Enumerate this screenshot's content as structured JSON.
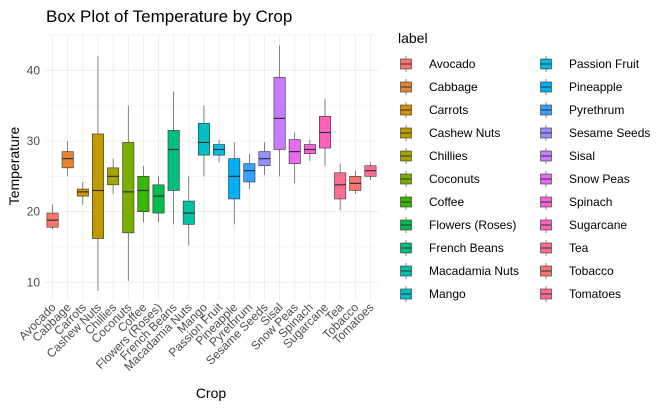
{
  "chart_data": {
    "type": "box",
    "title": "Box Plot of Temperature by Crop",
    "xlabel": "Crop",
    "ylabel": "Temperature",
    "ylim": [
      7.5,
      45
    ],
    "y_ticks": [
      10,
      20,
      30,
      40
    ],
    "grid": true,
    "legend": {
      "title": "label",
      "position": "right",
      "columns": 2
    },
    "categories": [
      "Avocado",
      "Cabbage",
      "Carrots",
      "Cashew Nuts",
      "Chillies",
      "Coconuts",
      "Coffee",
      "Flowers (Roses)",
      "French Beans",
      "Macadamia Nuts",
      "Mango",
      "Passion Fruit",
      "Pineapple",
      "Pyrethrum",
      "Sesame Seeds",
      "Sisal",
      "Snow Peas",
      "Spinach",
      "Sugarcane",
      "Tea",
      "Tobacco",
      "Tomatoes"
    ],
    "colors": [
      "#F8766D",
      "#EA8331",
      "#D89000",
      "#C09B00",
      "#A3A500",
      "#7CAE00",
      "#39B600",
      "#00BB4E",
      "#00BF7D",
      "#00C1A3",
      "#00BFC4",
      "#00BAE0",
      "#00B0F6",
      "#35A2FF",
      "#9590FF",
      "#C77CFF",
      "#E76BF3",
      "#FA62DB",
      "#FF62BC",
      "#FF6C91",
      "#F8766D",
      "#FF6C91"
    ],
    "boxes": [
      {
        "whisker_low": 17.5,
        "q1": 17.8,
        "median": 18.8,
        "q3": 19.8,
        "whisker_high": 21.0
      },
      {
        "whisker_low": 25.0,
        "q1": 26.2,
        "median": 27.5,
        "q3": 28.5,
        "whisker_high": 30.0
      },
      {
        "whisker_low": 21.0,
        "q1": 22.2,
        "median": 22.8,
        "q3": 23.2,
        "whisker_high": 24.2
      },
      {
        "whisker_low": 8.8,
        "q1": 16.2,
        "median": 23.0,
        "q3": 31.0,
        "whisker_high": 42.0
      },
      {
        "whisker_low": 22.5,
        "q1": 23.8,
        "median": 25.0,
        "q3": 26.2,
        "whisker_high": 27.5
      },
      {
        "whisker_low": 10.2,
        "q1": 17.0,
        "median": 22.8,
        "q3": 29.8,
        "whisker_high": 35.0
      },
      {
        "whisker_low": 18.5,
        "q1": 20.0,
        "median": 23.0,
        "q3": 25.0,
        "whisker_high": 26.5
      },
      {
        "whisker_low": 18.5,
        "q1": 19.8,
        "median": 22.2,
        "q3": 23.8,
        "whisker_high": 25.0
      },
      {
        "whisker_low": 18.2,
        "q1": 23.0,
        "median": 28.8,
        "q3": 31.5,
        "whisker_high": 37.0
      },
      {
        "whisker_low": 15.2,
        "q1": 18.2,
        "median": 19.8,
        "q3": 21.5,
        "whisker_high": 25.0
      },
      {
        "whisker_low": 25.0,
        "q1": 28.0,
        "median": 29.8,
        "q3": 32.5,
        "whisker_high": 35.0
      },
      {
        "whisker_low": 27.0,
        "q1": 28.0,
        "median": 28.8,
        "q3": 29.5,
        "whisker_high": 30.2
      },
      {
        "whisker_low": 18.2,
        "q1": 21.8,
        "median": 25.0,
        "q3": 27.5,
        "whisker_high": 29.8
      },
      {
        "whisker_low": 23.2,
        "q1": 24.2,
        "median": 25.8,
        "q3": 26.8,
        "whisker_high": 28.2
      },
      {
        "whisker_low": 25.2,
        "q1": 26.5,
        "median": 27.5,
        "q3": 28.5,
        "whisker_high": 29.8
      },
      {
        "whisker_low": 25.0,
        "q1": 28.8,
        "median": 33.2,
        "q3": 39.0,
        "whisker_high": 43.5
      },
      {
        "whisker_low": 24.0,
        "q1": 26.8,
        "median": 28.5,
        "q3": 30.2,
        "whisker_high": 31.2
      },
      {
        "whisker_low": 27.2,
        "q1": 28.2,
        "median": 28.8,
        "q3": 29.5,
        "whisker_high": 30.2
      },
      {
        "whisker_low": 26.5,
        "q1": 29.0,
        "median": 31.2,
        "q3": 33.5,
        "whisker_high": 36.0
      },
      {
        "whisker_low": 20.2,
        "q1": 21.8,
        "median": 23.8,
        "q3": 25.5,
        "whisker_high": 26.8
      },
      {
        "whisker_low": 22.5,
        "q1": 23.0,
        "median": 24.0,
        "q3": 25.0,
        "whisker_high": 25.8
      },
      {
        "whisker_low": 24.5,
        "q1": 25.0,
        "median": 25.8,
        "q3": 26.5,
        "whisker_high": 27.0
      }
    ]
  }
}
